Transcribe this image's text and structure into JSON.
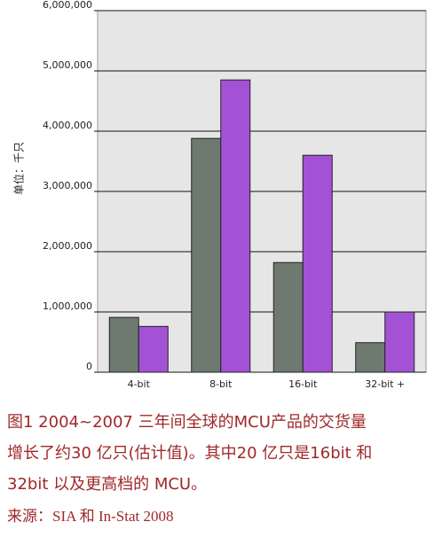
{
  "chart_data": {
    "type": "bar",
    "y_label": "单位：千只",
    "categories": [
      "4-bit",
      "8-bit",
      "16-bit",
      "32-bit +"
    ],
    "series": [
      {
        "color": "#6e7a70",
        "values": [
          910000,
          3880000,
          1820000,
          490000
        ]
      },
      {
        "color": "#a352d6",
        "values": [
          760000,
          4850000,
          3600000,
          1000000
        ]
      }
    ],
    "ylim": [
      0,
      6000000
    ],
    "yticks": [
      0,
      {
        "value": 1000000,
        "label": "1,000,000"
      },
      {
        "value": 2000000,
        "label": "2,000,000"
      },
      {
        "value": 3000000,
        "label": "3,000,000"
      },
      {
        "value": 4000000,
        "label": "4,000,000"
      },
      {
        "value": 5000000,
        "label": "5,000,000"
      },
      {
        "value": 6000000,
        "label": "6,000,000"
      }
    ],
    "grid": true
  },
  "caption": {
    "lines": [
      "图1  2004~2007 三年间全球的MCU产品的交货量",
      "增长了约30 亿只(估计值)。其中20 亿只是16bit 和",
      "32bit 以及更高档的 MCU。"
    ],
    "source": "来源：SIA 和 In-Stat 2008"
  }
}
